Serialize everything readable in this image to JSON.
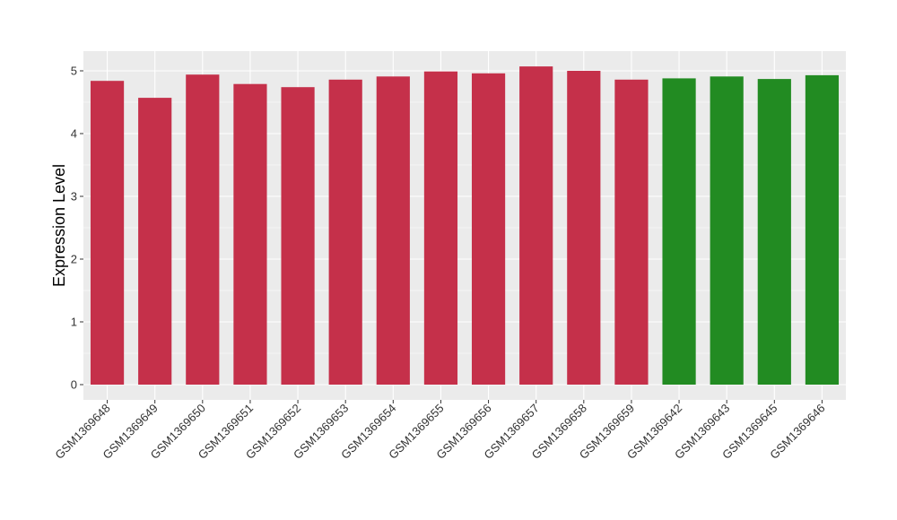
{
  "chart_data": {
    "type": "bar",
    "title": "",
    "xlabel": "",
    "ylabel": "Expression Level",
    "ylim": [
      0,
      5.2
    ],
    "yticks": [
      0,
      1,
      2,
      3,
      4,
      5
    ],
    "grid": true,
    "categories": [
      "GSM1369648",
      "GSM1369649",
      "GSM1369650",
      "GSM1369651",
      "GSM1369652",
      "GSM1369653",
      "GSM1369654",
      "GSM1369655",
      "GSM1369656",
      "GSM1369657",
      "GSM1369658",
      "GSM1369659",
      "GSM1369642",
      "GSM1369643",
      "GSM1369645",
      "GSM1369646"
    ],
    "values": [
      4.84,
      4.57,
      4.94,
      4.79,
      4.74,
      4.86,
      4.91,
      4.99,
      4.96,
      5.07,
      5.0,
      4.86,
      4.88,
      4.91,
      4.87,
      4.93
    ],
    "bar_colors": [
      "#c5304a",
      "#c5304a",
      "#c5304a",
      "#c5304a",
      "#c5304a",
      "#c5304a",
      "#c5304a",
      "#c5304a",
      "#c5304a",
      "#c5304a",
      "#c5304a",
      "#c5304a",
      "#228b22",
      "#228b22",
      "#228b22",
      "#228b22"
    ],
    "panel_background": "#ebebeb",
    "grid_color": "#ffffff"
  }
}
